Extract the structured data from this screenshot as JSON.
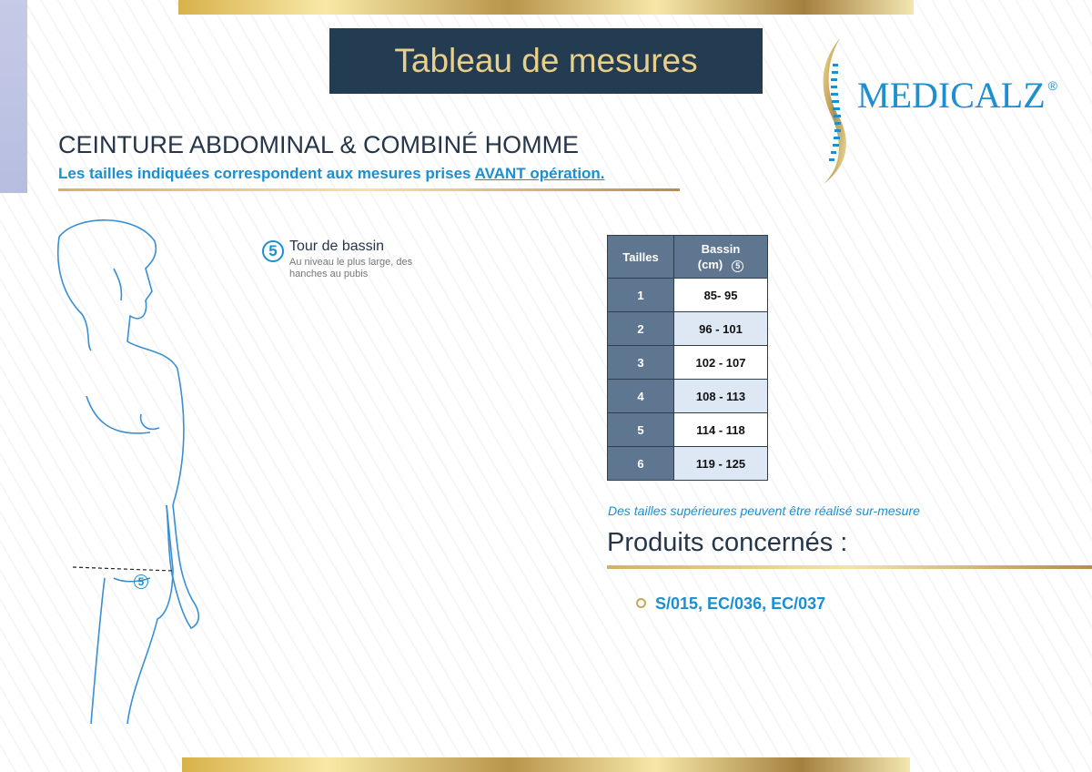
{
  "title": "Tableau de mesures",
  "logo": {
    "text": "MEDICALZ",
    "registered": "®"
  },
  "heading": "CEINTURE ABDOMINAL & COMBINÉ HOMME",
  "subheading": {
    "prefix": "Les tailles indiquées correspondent aux mesures prises ",
    "emphasis": "AVANT opération."
  },
  "measure": {
    "number": "5",
    "label": "Tour de bassin",
    "description": "Au niveau le plus large, des hanches au pubis"
  },
  "table": {
    "headers": {
      "size": "Tailles",
      "measure": "Bassin",
      "unit": "(cm)",
      "marker": "5"
    },
    "rows": [
      {
        "size": "1",
        "value": "85- 95"
      },
      {
        "size": "2",
        "value": "96 - 101"
      },
      {
        "size": "3",
        "value": "102 - 107"
      },
      {
        "size": "4",
        "value": "108 - 113"
      },
      {
        "size": "5",
        "value": "114 - 118"
      },
      {
        "size": "6",
        "value": "119 - 125"
      }
    ]
  },
  "note": "Des tailles supérieures peuvent être réalisé sur-mesure",
  "products": {
    "title": "Produits concernés :",
    "codes": "S/015, EC/036, EC/037"
  },
  "colors": {
    "navy": "#243c52",
    "blue": "#1b8fd0",
    "gold": "#d4b35a"
  }
}
